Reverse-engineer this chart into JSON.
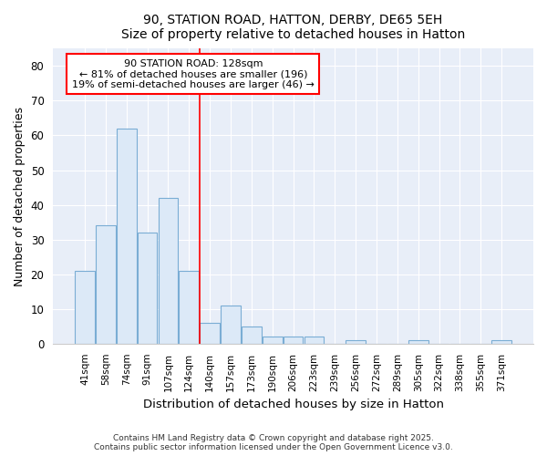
{
  "title1": "90, STATION ROAD, HATTON, DERBY, DE65 5EH",
  "title2": "Size of property relative to detached houses in Hatton",
  "xlabel": "Distribution of detached houses by size in Hatton",
  "ylabel": "Number of detached properties",
  "categories": [
    "41sqm",
    "58sqm",
    "74sqm",
    "91sqm",
    "107sqm",
    "124sqm",
    "140sqm",
    "157sqm",
    "173sqm",
    "190sqm",
    "206sqm",
    "223sqm",
    "239sqm",
    "256sqm",
    "272sqm",
    "289sqm",
    "305sqm",
    "322sqm",
    "338sqm",
    "355sqm",
    "371sqm"
  ],
  "values": [
    21,
    34,
    62,
    32,
    42,
    21,
    6,
    11,
    5,
    2,
    2,
    2,
    0,
    1,
    0,
    0,
    1,
    0,
    0,
    0,
    1
  ],
  "bar_color": "#dce9f7",
  "bar_edge_color": "#7aadd4",
  "marker_idx": 5,
  "marker_label": "90 STATION ROAD: 128sqm",
  "annotation_line1": "← 81% of detached houses are smaller (196)",
  "annotation_line2": "19% of semi-detached houses are larger (46) →",
  "ylim": [
    0,
    85
  ],
  "yticks": [
    0,
    10,
    20,
    30,
    40,
    50,
    60,
    70,
    80
  ],
  "footer1": "Contains HM Land Registry data © Crown copyright and database right 2025.",
  "footer2": "Contains public sector information licensed under the Open Government Licence v3.0.",
  "bg_color": "#ffffff",
  "plot_bg_color": "#e8eef8",
  "grid_color": "#ffffff",
  "title_fontsize": 11,
  "subtitle_fontsize": 10
}
